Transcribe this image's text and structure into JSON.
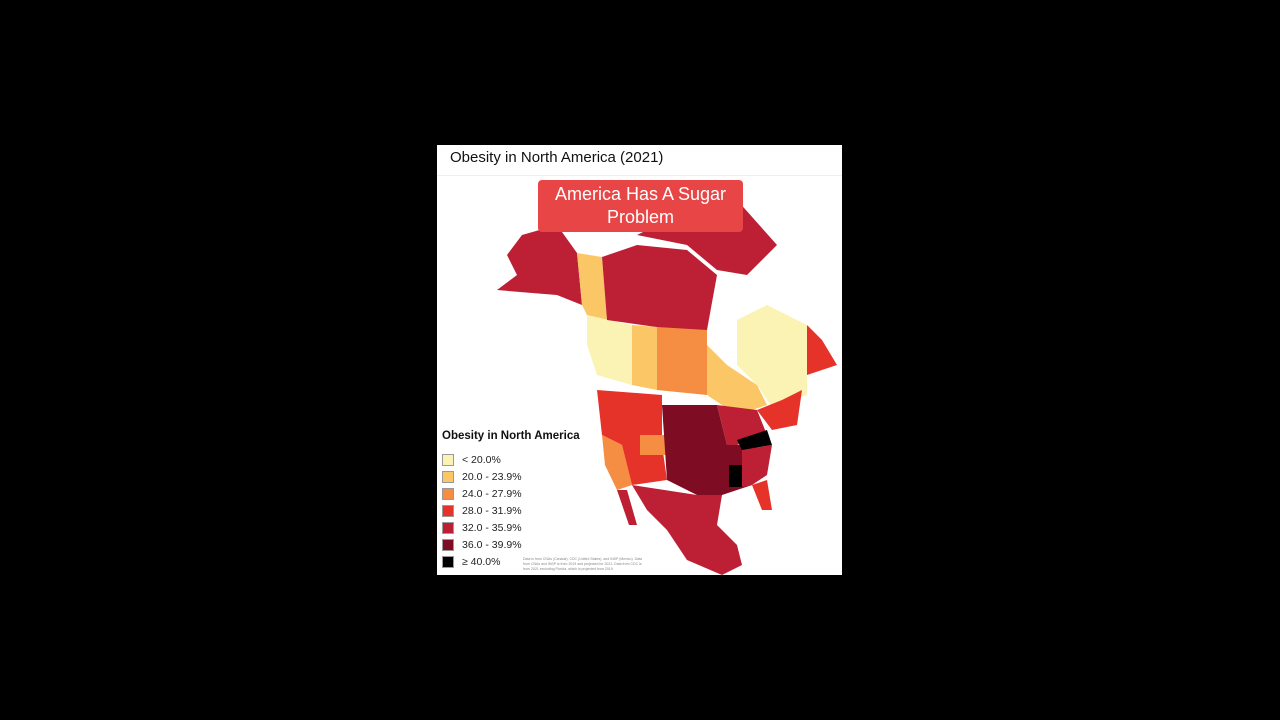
{
  "header": {
    "title": "Obesity in North America (2021)"
  },
  "banner": {
    "text_line1": "America Has A Sugar",
    "text_line2": "Problem",
    "color": "#e84646"
  },
  "legend": {
    "title": "Obesity in North America",
    "items": [
      {
        "label": "< 20.0%",
        "color": "#fbf3b4"
      },
      {
        "label": "20.0 - 23.9%",
        "color": "#fbc766"
      },
      {
        "label": "24.0 - 27.9%",
        "color": "#f58d42"
      },
      {
        "label": "28.0 - 31.9%",
        "color": "#e5332a"
      },
      {
        "label": "32.0 - 35.9%",
        "color": "#bd1f34"
      },
      {
        "label": "36.0 - 39.9%",
        "color": "#7e0c22"
      },
      {
        "label": "≥ 40.0%",
        "color": "#000000"
      }
    ]
  },
  "source": "Data is from CNAs (Canada), CDC (United States), and INSP (Mexico). Data from CNAs and INSP is from 2019 and projected for 2021. Data from CDC is from 2021 excluding Florida, which is projected from 2019."
}
